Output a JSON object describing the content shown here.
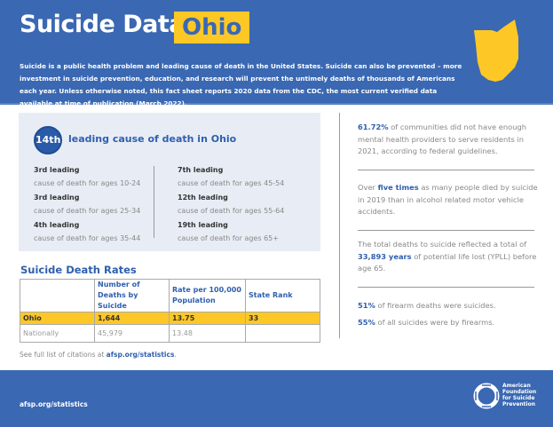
{
  "header": {
    "title": "Suicide Data:",
    "state": "Ohio",
    "intro": "Suicide is a public health problem and leading cause of death in the United States. Suicide can also be prevented – more investment in suicide prevention, education, and research will prevent the untimely deaths of thousands of Americans each year. Unless otherwise noted, this fact sheet reports 2020 data from the CDC, the most current verified data available at time of publication (March 2022).",
    "state_color": "#fdc826",
    "brand_color": "#3a68b2"
  },
  "rank": {
    "badge": "14th",
    "title": "leading cause of death in Ohio",
    "items": [
      {
        "rank": "3rd leading",
        "desc": "cause of death for ages 10-24"
      },
      {
        "rank": "3rd leading",
        "desc": "cause of death for ages 25-34"
      },
      {
        "rank": "4th leading",
        "desc": "cause of death for ages 35-44"
      },
      {
        "rank": "7th leading",
        "desc": "cause of death for ages 45-54"
      },
      {
        "rank": "12th leading",
        "desc": "cause of death for ages 55-64"
      },
      {
        "rank": "19th leading",
        "desc": "cause of death for ages 65+"
      }
    ]
  },
  "rates": {
    "title": "Suicide Death Rates",
    "headers": [
      "",
      "Number of Deaths by Suicide",
      "Rate per 100,000 Population",
      "State Rank"
    ],
    "rows": [
      [
        "Ohio",
        "1,644",
        "13.75",
        "33"
      ],
      [
        "Nationally",
        "45,979",
        "13.48",
        ""
      ]
    ]
  },
  "citation": {
    "text": "See full list of citations at ",
    "link": "afsp.org/statistics",
    "end": "."
  },
  "facts": [
    {
      "pre": "",
      "bold": "61.72%",
      "post": " of communities did not have enough mental health providers to serve residents in 2021, according to federal guidelines."
    },
    {
      "pre": "Over ",
      "bold": "five times",
      "post": " as many people died by suicide in 2019 than in alcohol related motor vehicle accidents."
    },
    {
      "pre": "The total deaths to suicide reflected a total of ",
      "bold": "33,893 years",
      "post": " of potential life lost (YPLL) before age 65."
    },
    {
      "pre": "",
      "bold": "51%",
      "post": " of firearm deaths were suicides."
    },
    {
      "pre": "",
      "bold": "55%",
      "post": " of all suicides were by firearms."
    }
  ],
  "footer": {
    "link": "afsp.org/statistics",
    "logo_lines": [
      "American",
      "Foundation",
      "for Suicide",
      "Prevention"
    ]
  }
}
